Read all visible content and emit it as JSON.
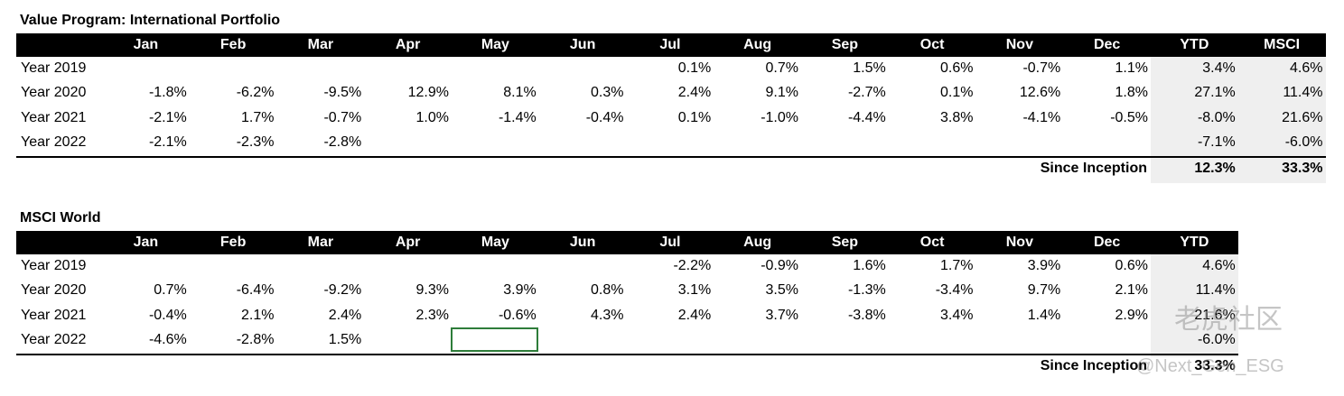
{
  "tables": [
    {
      "title": "Value Program: International Portfolio",
      "columns": [
        "Jan",
        "Feb",
        "Mar",
        "Apr",
        "May",
        "Jun",
        "Jul",
        "Aug",
        "Sep",
        "Oct",
        "Nov",
        "Dec",
        "YTD",
        "MSCI"
      ],
      "rows": [
        {
          "label": "Year 2019",
          "cells": [
            null,
            null,
            null,
            null,
            null,
            null,
            "0.1%",
            "0.7%",
            "1.5%",
            "0.6%",
            "-0.7%",
            "1.1%",
            "3.4%",
            "4.6%"
          ]
        },
        {
          "label": "Year 2020",
          "cells": [
            "-1.8%",
            "-6.2%",
            "-9.5%",
            "12.9%",
            "8.1%",
            "0.3%",
            "2.4%",
            "9.1%",
            "-2.7%",
            "0.1%",
            "12.6%",
            "1.8%",
            "27.1%",
            "11.4%"
          ]
        },
        {
          "label": "Year 2021",
          "cells": [
            "-2.1%",
            "1.7%",
            "-0.7%",
            "1.0%",
            "-1.4%",
            "-0.4%",
            "0.1%",
            "-1.0%",
            "-4.4%",
            "3.8%",
            "-4.1%",
            "-0.5%",
            "-8.0%",
            "21.6%"
          ]
        },
        {
          "label": "Year 2022",
          "cells": [
            "-2.1%",
            "-2.3%",
            "-2.8%",
            null,
            null,
            null,
            null,
            null,
            null,
            null,
            null,
            null,
            "-7.1%",
            "-6.0%"
          ]
        }
      ],
      "summary": {
        "label": "Since Inception",
        "values": [
          "12.3%",
          "33.3%"
        ]
      }
    },
    {
      "title": "MSCI World",
      "columns": [
        "Jan",
        "Feb",
        "Mar",
        "Apr",
        "May",
        "Jun",
        "Jul",
        "Aug",
        "Sep",
        "Oct",
        "Nov",
        "Dec",
        "YTD"
      ],
      "rows": [
        {
          "label": "Year 2019",
          "cells": [
            null,
            null,
            null,
            null,
            null,
            null,
            "-2.2%",
            "-0.9%",
            "1.6%",
            "1.7%",
            "3.9%",
            "0.6%",
            "4.6%"
          ]
        },
        {
          "label": "Year 2020",
          "cells": [
            "0.7%",
            "-6.4%",
            "-9.2%",
            "9.3%",
            "3.9%",
            "0.8%",
            "3.1%",
            "3.5%",
            "-1.3%",
            "-3.4%",
            "9.7%",
            "2.1%",
            "11.4%"
          ]
        },
        {
          "label": "Year 2021",
          "cells": [
            "-0.4%",
            "2.1%",
            "2.4%",
            "2.3%",
            "-0.6%",
            "4.3%",
            "2.4%",
            "3.7%",
            "-3.8%",
            "3.4%",
            "1.4%",
            "2.9%",
            "21.6%"
          ]
        },
        {
          "label": "Year 2022",
          "cells": [
            "-4.6%",
            "-2.8%",
            "1.5%",
            null,
            null,
            null,
            null,
            null,
            null,
            null,
            null,
            null,
            "-6.0%"
          ]
        }
      ],
      "summary": {
        "label": "Since Inception",
        "values": [
          "33.3%"
        ]
      }
    }
  ],
  "watermark": {
    "logo": "老虎社区",
    "handle": "@Next_Gen_ESG"
  }
}
